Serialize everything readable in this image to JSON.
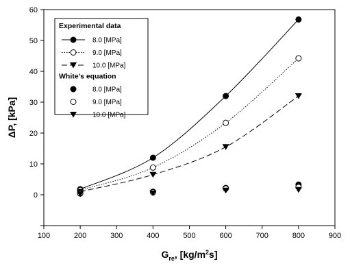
{
  "chart_data": {
    "type": "line",
    "xlabel": "G",
    "xlabel_subscript": "re",
    "xlabel_units": ", [kg/m",
    "xlabel_units_sup": "2",
    "xlabel_units_tail": "s]",
    "ylabel": "ΔP, [kPa]",
    "xlim": [
      100,
      900
    ],
    "ylim": [
      -10,
      60
    ],
    "xticks": [
      100,
      200,
      300,
      400,
      500,
      600,
      700,
      800,
      900
    ],
    "yticks": [
      0,
      10,
      20,
      30,
      40,
      50,
      60
    ],
    "grid": false,
    "legend_position": "top-left",
    "legend": {
      "group1_title": "Experimental data",
      "group2_title": "White's equation"
    },
    "series": [
      {
        "name": "8.0 [MPa]",
        "group": "Experimental data",
        "marker": "filled-circle",
        "line": "solid",
        "x": [
          200,
          400,
          600,
          800
        ],
        "values": [
          1.8,
          12.0,
          32.0,
          56.8
        ]
      },
      {
        "name": "9.0 [MPa]",
        "group": "Experimental data",
        "marker": "open-circle",
        "line": "dotted",
        "x": [
          200,
          400,
          600,
          800
        ],
        "values": [
          1.5,
          8.8,
          23.3,
          44.2
        ]
      },
      {
        "name": "10.0 [MPa]",
        "group": "Experimental data",
        "marker": "filled-triangle-down",
        "line": "dashed",
        "x": [
          200,
          400,
          600,
          800
        ],
        "values": [
          1.0,
          6.5,
          15.5,
          32.0
        ]
      },
      {
        "name": "8.0 [MPa]",
        "group": "White's equation",
        "marker": "filled-circle",
        "line": "none",
        "x": [
          200,
          400,
          600,
          800
        ],
        "values": [
          0.5,
          1.0,
          2.2,
          3.3
        ]
      },
      {
        "name": "9.0 [MPa]",
        "group": "White's equation",
        "marker": "open-circle",
        "line": "none",
        "x": [
          200,
          400,
          600,
          800
        ],
        "values": [
          0.4,
          0.8,
          2.0,
          2.5
        ]
      },
      {
        "name": "10.0 [MPa]",
        "group": "White's equation",
        "marker": "filled-triangle-down",
        "line": "none",
        "x": [
          200,
          400,
          600,
          800
        ],
        "values": [
          0.2,
          0.5,
          1.4,
          1.6
        ]
      }
    ]
  }
}
